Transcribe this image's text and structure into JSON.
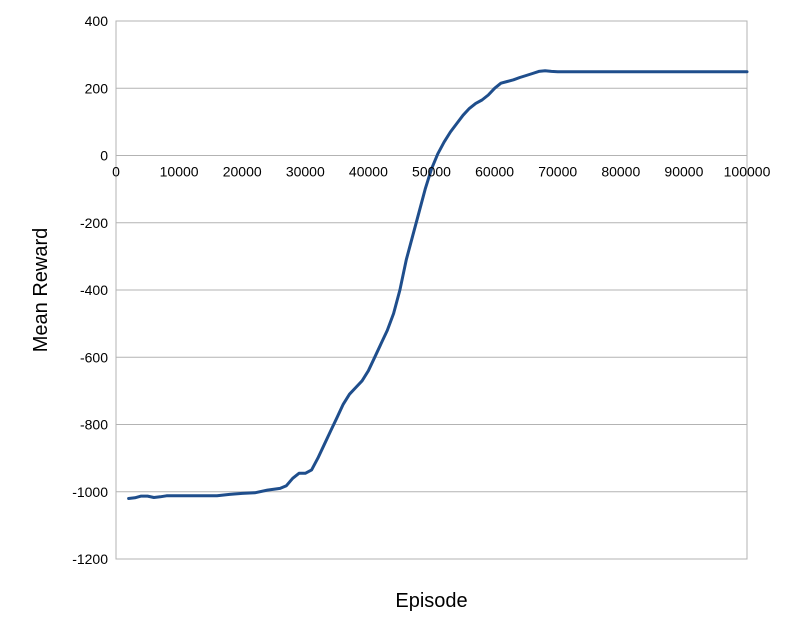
{
  "chart_data": {
    "type": "line",
    "title": "",
    "xlabel": "Episode",
    "ylabel": "Mean Reward",
    "xlim": [
      0,
      100000
    ],
    "ylim": [
      -1200,
      400
    ],
    "x_ticks": [
      0,
      10000,
      20000,
      30000,
      40000,
      50000,
      60000,
      70000,
      80000,
      90000,
      100000
    ],
    "y_ticks": [
      400,
      200,
      0,
      -200,
      -400,
      -600,
      -800,
      -1000,
      -1200
    ],
    "x_tick_labels": [
      "0",
      "10000",
      "20000",
      "30000",
      "40000",
      "50000",
      "60000",
      "70000",
      "80000",
      "90000",
      "100000"
    ],
    "y_tick_labels": [
      "400",
      "200",
      "0",
      "-200",
      "-400",
      "-600",
      "-800",
      "-1000",
      "-1200"
    ],
    "grid": true,
    "legend": "none",
    "series": [
      {
        "color": "#1f4e8c",
        "x": [
          2000,
          3000,
          4000,
          5000,
          6000,
          7000,
          8000,
          10000,
          12000,
          14000,
          16000,
          18000,
          20000,
          22000,
          24000,
          26000,
          27000,
          28000,
          29000,
          30000,
          31000,
          32000,
          33000,
          34000,
          35000,
          36000,
          37000,
          38000,
          39000,
          40000,
          41000,
          42000,
          43000,
          44000,
          45000,
          46000,
          47000,
          48000,
          49000,
          50000,
          51000,
          52000,
          53000,
          54000,
          55000,
          56000,
          57000,
          58000,
          59000,
          60000,
          61000,
          62000,
          63000,
          64000,
          65000,
          66000,
          67000,
          68000,
          69000,
          70000,
          71000,
          72000,
          73000,
          74000,
          80000,
          90000,
          100000
        ],
        "y": [
          -1020,
          -1018,
          -1013,
          -1013,
          -1017,
          -1015,
          -1012,
          -1012,
          -1012,
          -1012,
          -1012,
          -1008,
          -1005,
          -1003,
          -995,
          -990,
          -982,
          -960,
          -945,
          -945,
          -935,
          -900,
          -860,
          -820,
          -780,
          -740,
          -710,
          -690,
          -670,
          -640,
          -600,
          -560,
          -520,
          -470,
          -400,
          -310,
          -240,
          -170,
          -100,
          -40,
          5,
          40,
          70,
          95,
          120,
          140,
          155,
          165,
          180,
          200,
          215,
          220,
          225,
          232,
          238,
          244,
          250,
          252,
          250,
          249,
          249,
          249,
          249,
          249,
          249,
          249,
          249
        ]
      }
    ]
  }
}
